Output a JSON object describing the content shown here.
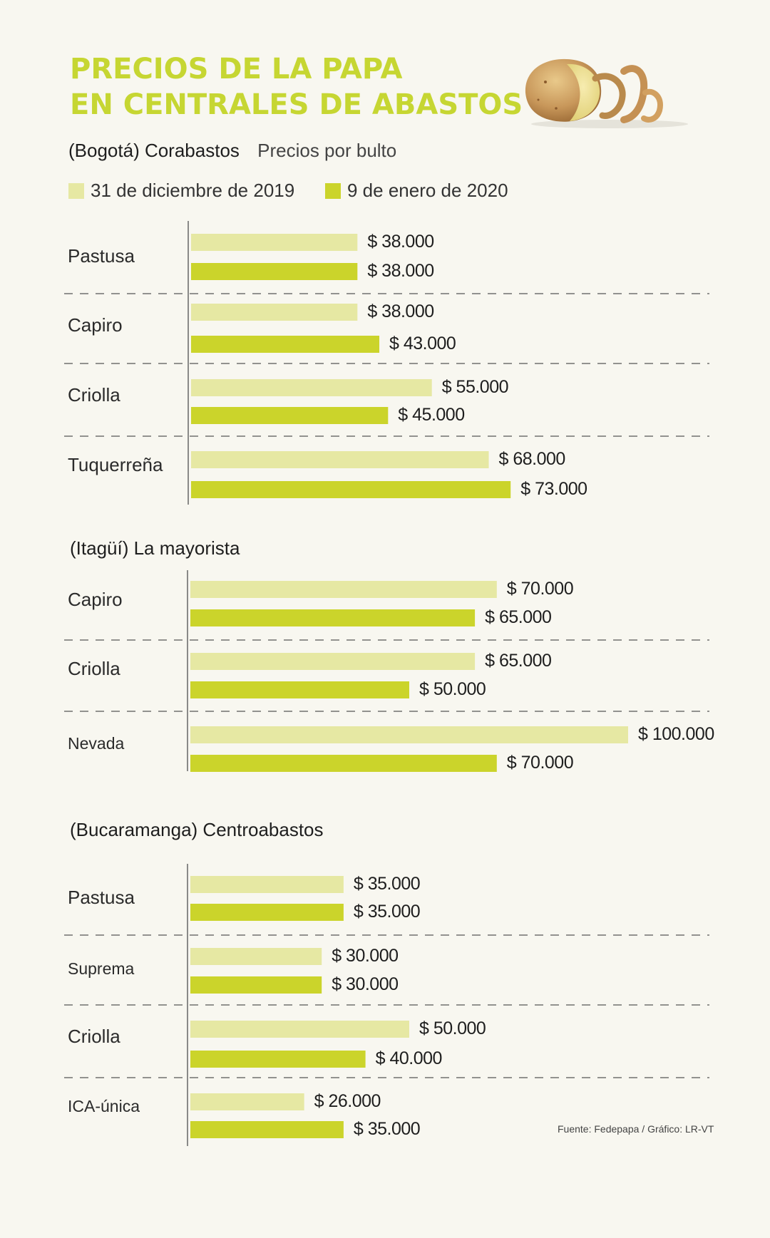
{
  "title": {
    "line1": "PRECIOS DE LA PAPA",
    "line2": "EN CENTRALES DE ABASTOS"
  },
  "subtitle": {
    "market": "(Bogotá) Corabastos",
    "unit": "Precios por bulto"
  },
  "legend": [
    {
      "label": "31 de diciembre de 2019",
      "color": "#e6e8a3"
    },
    {
      "label": "9 de enero de 2020",
      "color": "#cbd42b"
    }
  ],
  "colors": {
    "title": "#c6d632",
    "light_bar": "#e6e8a3",
    "dark_bar": "#cbd42b",
    "background": "#f8f7f0"
  },
  "source": "Fuente: Fedepapa / Gráfico: LR-VT",
  "chart_data": [
    {
      "type": "bar",
      "orientation": "horizontal",
      "title": "(Bogotá) Corabastos",
      "categories": [
        "Pastusa",
        "Capiro",
        "Criolla",
        "Tuquerreña"
      ],
      "series": [
        {
          "name": "31 de diciembre de 2019",
          "values": [
            38000,
            38000,
            55000,
            68000
          ]
        },
        {
          "name": "9 de enero de 2020",
          "values": [
            38000,
            43000,
            45000,
            73000
          ]
        }
      ],
      "value_labels": [
        [
          "$ 38.000",
          "$ 38.000",
          "$ 55.000",
          "$ 68.000"
        ],
        [
          "$ 38.000",
          "$ 43.000",
          "$ 45.000",
          "$ 73.000"
        ]
      ],
      "xlim": [
        0,
        100000
      ],
      "grid": false
    },
    {
      "type": "bar",
      "orientation": "horizontal",
      "title": "(Itagüí) La mayorista",
      "categories": [
        "Capiro",
        "Criolla",
        "Nevada"
      ],
      "series": [
        {
          "name": "31 de diciembre de 2019",
          "values": [
            70000,
            65000,
            100000
          ]
        },
        {
          "name": "9 de enero de 2020",
          "values": [
            65000,
            50000,
            70000
          ]
        }
      ],
      "value_labels": [
        [
          "$ 70.000",
          "$ 65.000",
          "$ 100.000"
        ],
        [
          "$ 65.000",
          "$ 50.000",
          "$ 70.000"
        ]
      ],
      "xlim": [
        0,
        100000
      ],
      "grid": false
    },
    {
      "type": "bar",
      "orientation": "horizontal",
      "title": "(Bucaramanga) Centroabastos",
      "categories": [
        "Pastusa",
        "Suprema",
        "Criolla",
        "ICA-única"
      ],
      "series": [
        {
          "name": "31 de diciembre de 2019",
          "values": [
            35000,
            30000,
            50000,
            26000
          ]
        },
        {
          "name": "9 de enero de 2020",
          "values": [
            35000,
            30000,
            40000,
            35000
          ]
        }
      ],
      "value_labels": [
        [
          "$ 35.000",
          "$ 30.000",
          "$ 50.000",
          "$ 26.000"
        ],
        [
          "$ 35.000",
          "$ 30.000",
          "$ 40.000",
          "$ 35.000"
        ]
      ],
      "xlim": [
        0,
        100000
      ],
      "grid": false
    }
  ]
}
